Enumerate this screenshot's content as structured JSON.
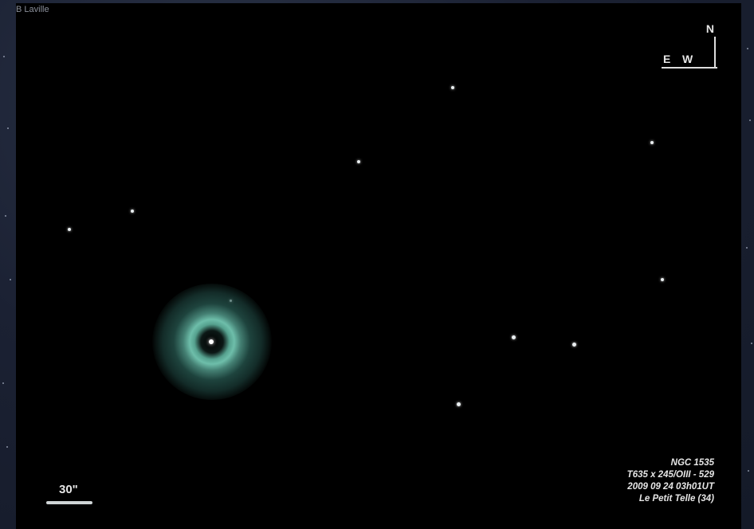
{
  "credit": "B Laville",
  "compass": {
    "north": "N",
    "east": "E",
    "west": "W"
  },
  "scale": {
    "label": "30\""
  },
  "info": {
    "object": "NGC 1535",
    "instrument": "T635 x 245/OIII - 529",
    "date": "2009 09 24  03h01UT",
    "location": "Le Petit Telle  (34)"
  },
  "colors": {
    "nebula_ring": "#6ebeaa",
    "sky": "#000000"
  }
}
